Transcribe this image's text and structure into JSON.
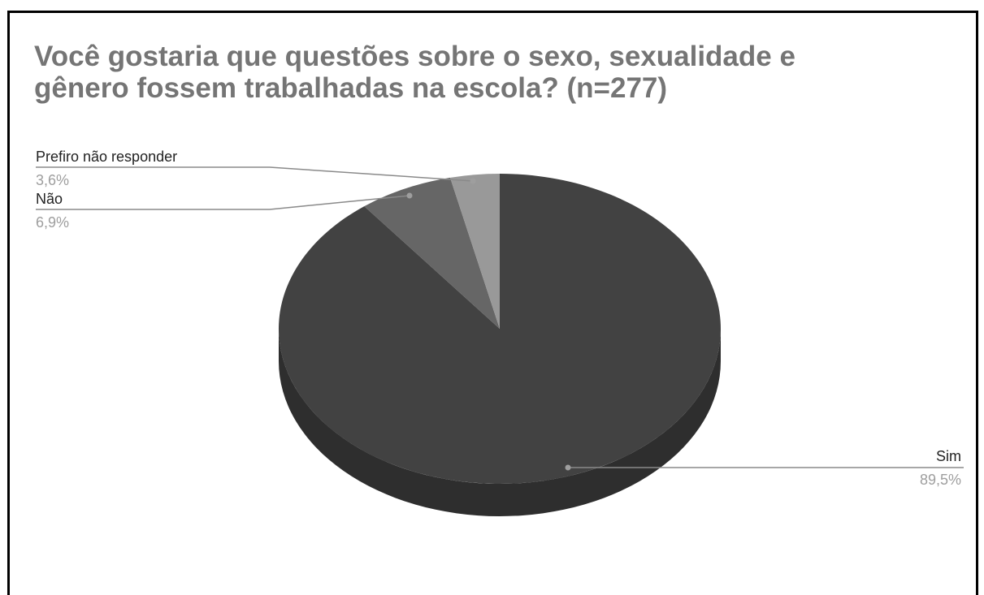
{
  "chart_data": {
    "type": "pie",
    "title_lines": [
      "Você gostaria que questões sobre o sexo, sexualidade e",
      "gênero fossem trabalhadas na escola? (n=277)"
    ],
    "slices": [
      {
        "name": "Sim",
        "value": 89.5,
        "label": "89,5%",
        "color": "#424242",
        "side_color": "#2e2e2e"
      },
      {
        "name": "Não",
        "value": 6.9,
        "label": "6,9%",
        "color": "#666666",
        "side_color": "#4a4a4a"
      },
      {
        "name": "Prefiro não responder",
        "value": 3.6,
        "label": "3,6%",
        "color": "#999999",
        "side_color": "#777777"
      }
    ],
    "style": "3d"
  }
}
